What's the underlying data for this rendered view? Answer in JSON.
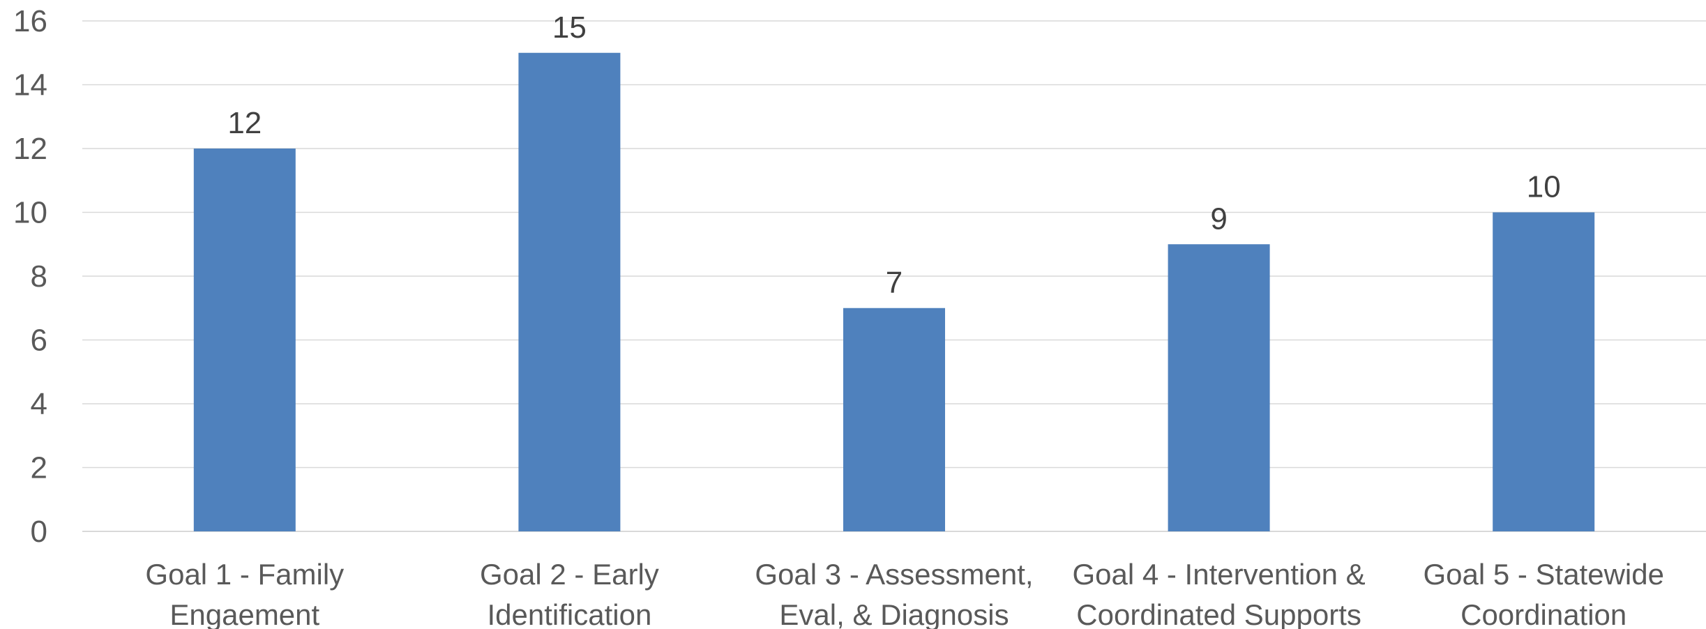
{
  "chart_data": {
    "type": "bar",
    "title": "",
    "xlabel": "",
    "ylabel": "",
    "categories": [
      [
        "Goal 1 - Family",
        "Engaement"
      ],
      [
        "Goal 2 - Early",
        "Identification"
      ],
      [
        "Goal 3 - Assessment,",
        "Eval, & Diagnosis"
      ],
      [
        "Goal 4 - Intervention &",
        "Coordinated Supports"
      ],
      [
        "Goal 5 - Statewide",
        "Coordination"
      ]
    ],
    "values": [
      12,
      15,
      7,
      9,
      10
    ],
    "data_labels": [
      "12",
      "15",
      "7",
      "9",
      "10"
    ],
    "ylim": [
      0,
      16
    ],
    "yticks": [
      0,
      2,
      4,
      6,
      8,
      10,
      12,
      14,
      16
    ],
    "grid": true,
    "legend": "none",
    "bar_color": "#4f81bd",
    "gridline_color": "#d9d9d9",
    "axis_color": "#d9d9d9"
  }
}
